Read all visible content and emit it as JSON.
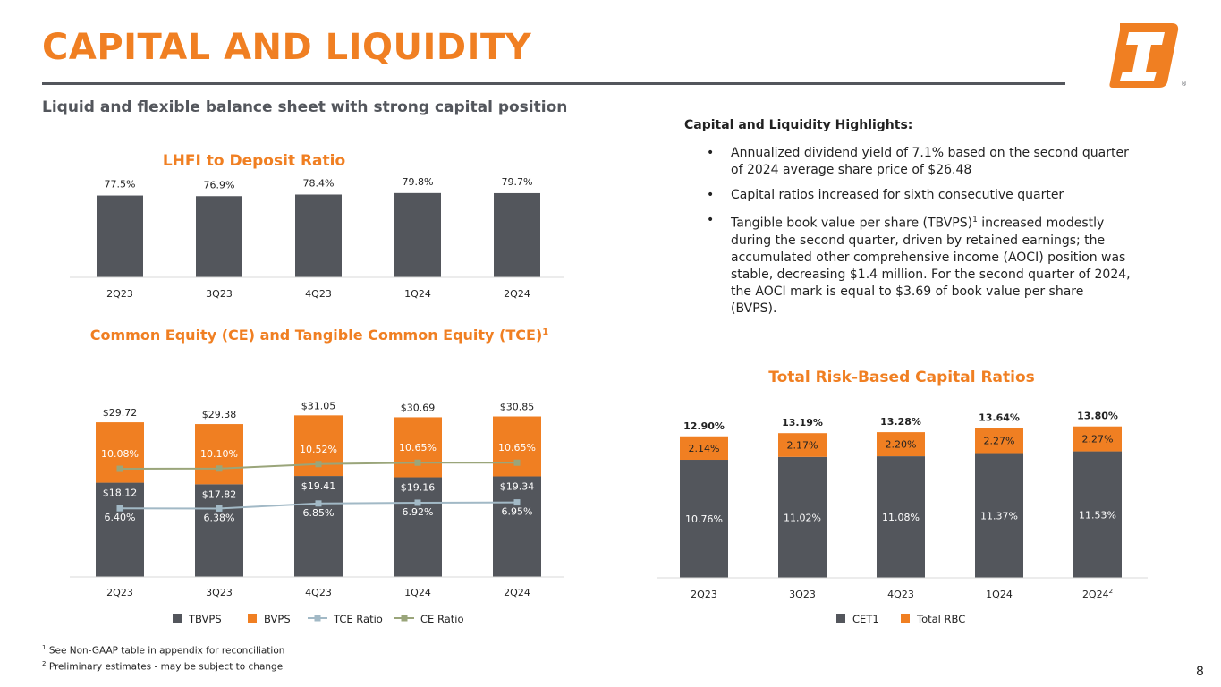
{
  "header": {
    "title": "CAPITAL AND LIQUIDITY",
    "subtitle": "Liquid and flexible balance sheet with strong capital position",
    "logo_name": "company-logo"
  },
  "highlights": {
    "heading": "Capital and Liquidity Highlights:",
    "bullets": [
      {
        "text": "Annualized dividend yield of 7.1% based on the second quarter of 2024 average share price of $26.48"
      },
      {
        "text": "Capital ratios increased for sixth consecutive quarter"
      },
      {
        "text": "Tangible book value per share (TBVPS)",
        "sup": "1",
        "text_after": " increased modestly during the second quarter, driven by retained earnings; the accumulated other comprehensive income (AOCI) position was stable, decreasing $1.4 million. For the second quarter of 2024, the AOCI mark is equal to $3.69 of book value per share (BVPS)."
      }
    ]
  },
  "footnotes": [
    {
      "mark": "1",
      "text": "See Non-GAAP table in appendix for reconciliation"
    },
    {
      "mark": "2",
      "text": "Preliminary estimates - may be subject to change"
    }
  ],
  "page_number": "8",
  "colors": {
    "orange": "#f07f22",
    "gray": "#53565c",
    "tce_line": "#a2b9c6",
    "ce_line": "#9aa57a"
  },
  "chart_data": [
    {
      "id": "lhfi",
      "type": "bar",
      "title": "LHFI to Deposit Ratio",
      "categories": [
        "2Q23",
        "3Q23",
        "4Q23",
        "1Q24",
        "2Q24"
      ],
      "values": [
        77.5,
        76.9,
        78.4,
        79.8,
        79.7
      ],
      "labels": [
        "77.5%",
        "76.9%",
        "78.4%",
        "79.8%",
        "79.7%"
      ],
      "ylim": [
        0,
        100
      ]
    },
    {
      "id": "equity",
      "type": "bar",
      "title": "Common Equity (CE) and Tangible Common Equity (TCE)",
      "title_sup": "1",
      "categories": [
        "2Q23",
        "3Q23",
        "4Q23",
        "1Q24",
        "2Q24"
      ],
      "series": [
        {
          "name": "TBVPS",
          "values": [
            18.12,
            17.82,
            19.41,
            19.16,
            19.34
          ],
          "labels": [
            "$18.12",
            "$17.82",
            "$19.41",
            "$19.16",
            "$19.34"
          ]
        },
        {
          "name": "BVPS",
          "values": [
            29.72,
            29.38,
            31.05,
            30.69,
            30.85
          ],
          "labels": [
            "$29.72",
            "$29.38",
            "$31.05",
            "$30.69",
            "$30.85"
          ]
        },
        {
          "name": "TCE Ratio",
          "type": "line",
          "values": [
            6.4,
            6.38,
            6.85,
            6.92,
            6.95
          ],
          "labels": [
            "6.40%",
            "6.38%",
            "6.85%",
            "6.92%",
            "6.95%"
          ]
        },
        {
          "name": "CE Ratio",
          "type": "line",
          "values": [
            10.08,
            10.1,
            10.52,
            10.65,
            10.65
          ],
          "labels": [
            "10.08%",
            "10.10%",
            "10.52%",
            "10.65%",
            "10.65%"
          ]
        }
      ],
      "legend": [
        "TBVPS",
        "BVPS",
        "TCE Ratio",
        "CE Ratio"
      ],
      "ylim_bars": [
        0,
        33
      ],
      "ylim_ratio": [
        0,
        16
      ]
    },
    {
      "id": "rbc",
      "type": "bar",
      "title": "Total Risk-Based Capital Ratios",
      "categories": [
        "2Q23",
        "3Q23",
        "4Q23",
        "1Q24",
        "2Q24"
      ],
      "category_sups": [
        "",
        "",
        "",
        "",
        "2"
      ],
      "series": [
        {
          "name": "CET1",
          "values": [
            10.76,
            11.02,
            11.08,
            11.37,
            11.53
          ],
          "labels": [
            "10.76%",
            "11.02%",
            "11.08%",
            "11.37%",
            "11.53%"
          ]
        },
        {
          "name": "Total RBC",
          "values": [
            2.14,
            2.17,
            2.2,
            2.27,
            2.27
          ],
          "labels": [
            "2.14%",
            "2.17%",
            "2.20%",
            "2.27%",
            "2.27%"
          ]
        }
      ],
      "totals": [
        "12.90%",
        "13.19%",
        "13.28%",
        "13.64%",
        "13.80%"
      ],
      "total_values": [
        12.9,
        13.19,
        13.28,
        13.64,
        13.8
      ],
      "legend": [
        "CET1",
        "Total RBC"
      ],
      "ylim": [
        0,
        15
      ]
    }
  ]
}
